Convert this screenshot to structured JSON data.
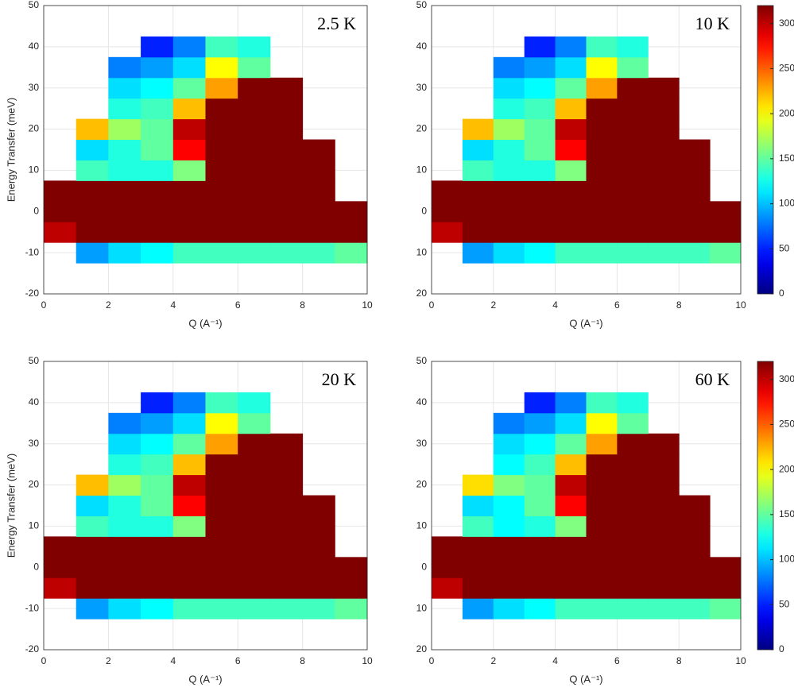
{
  "chart_data": [
    {
      "type": "heatmap",
      "annotation": "2.5 K",
      "xlabel": "Q (A⁻¹)",
      "ylabel": "Energy Transfer (meV)",
      "colormap": "jet",
      "clim": [
        0,
        320
      ],
      "grid": true,
      "xlim": [
        0,
        10
      ],
      "ylim": [
        -20,
        50
      ],
      "xticks": [
        0,
        2,
        4,
        6,
        8,
        10
      ],
      "yticks": [
        -20,
        -10,
        0,
        10,
        20,
        30,
        40,
        50
      ],
      "x": [
        0.5,
        1.5,
        2.5,
        3.5,
        4.5,
        5.5,
        6.5,
        7.5,
        8.5,
        9.5
      ],
      "y": [
        -10,
        -5,
        0,
        5,
        10,
        15,
        20,
        25,
        30,
        35,
        40
      ],
      "z": [
        [
          null,
          90,
          110,
          120,
          140,
          140,
          140,
          140,
          140,
          150
        ],
        [
          300,
          320,
          320,
          320,
          320,
          320,
          320,
          320,
          320,
          320
        ],
        [
          320,
          320,
          320,
          320,
          320,
          320,
          320,
          320,
          320,
          320
        ],
        [
          320,
          320,
          320,
          320,
          320,
          320,
          320,
          320,
          320,
          null
        ],
        [
          null,
          140,
          130,
          130,
          160,
          320,
          320,
          320,
          320,
          null
        ],
        [
          null,
          110,
          130,
          150,
          280,
          320,
          320,
          320,
          320,
          null
        ],
        [
          null,
          220,
          170,
          150,
          300,
          320,
          320,
          320,
          null,
          null
        ],
        [
          null,
          null,
          130,
          140,
          220,
          320,
          320,
          320,
          null,
          null
        ],
        [
          null,
          null,
          110,
          120,
          150,
          230,
          320,
          320,
          null,
          null
        ],
        [
          null,
          null,
          80,
          90,
          110,
          200,
          150,
          null,
          null,
          null
        ],
        [
          null,
          null,
          null,
          50,
          80,
          140,
          130,
          null,
          null,
          null
        ]
      ]
    },
    {
      "type": "heatmap",
      "annotation": "10 K",
      "xlabel": "Q (A⁻¹)",
      "colormap": "jet",
      "clim": [
        0,
        320
      ],
      "grid": true,
      "xlim": [
        0,
        10
      ],
      "ylim": [
        -20,
        50
      ],
      "xticks": [
        0,
        2,
        4,
        6,
        8,
        10
      ],
      "yticks": [
        {
          "value": -20,
          "label": "20"
        },
        {
          "value": -10,
          "label": "10"
        },
        0,
        10,
        20,
        30,
        40,
        50
      ],
      "colorbar_ticks": [
        0,
        50,
        100,
        150,
        200,
        250,
        300
      ],
      "x": [
        0.5,
        1.5,
        2.5,
        3.5,
        4.5,
        5.5,
        6.5,
        7.5,
        8.5,
        9.5
      ],
      "y": [
        -10,
        -5,
        0,
        5,
        10,
        15,
        20,
        25,
        30,
        35,
        40
      ],
      "z": [
        [
          null,
          90,
          110,
          120,
          140,
          140,
          140,
          140,
          140,
          150
        ],
        [
          300,
          320,
          320,
          320,
          320,
          320,
          320,
          320,
          320,
          320
        ],
        [
          320,
          320,
          320,
          320,
          320,
          320,
          320,
          320,
          320,
          320
        ],
        [
          320,
          320,
          320,
          320,
          320,
          320,
          320,
          320,
          320,
          null
        ],
        [
          null,
          140,
          130,
          130,
          160,
          320,
          320,
          320,
          320,
          null
        ],
        [
          null,
          110,
          130,
          150,
          280,
          320,
          320,
          320,
          320,
          null
        ],
        [
          null,
          220,
          170,
          150,
          300,
          320,
          320,
          320,
          null,
          null
        ],
        [
          null,
          null,
          130,
          140,
          220,
          320,
          320,
          320,
          null,
          null
        ],
        [
          null,
          null,
          110,
          120,
          150,
          230,
          320,
          320,
          null,
          null
        ],
        [
          null,
          null,
          80,
          90,
          110,
          200,
          150,
          null,
          null,
          null
        ],
        [
          null,
          null,
          null,
          50,
          80,
          140,
          130,
          null,
          null,
          null
        ]
      ]
    },
    {
      "type": "heatmap",
      "annotation": "20 K",
      "xlabel": "Q (A⁻¹)",
      "ylabel": "Energy Transfer (meV)",
      "colormap": "jet",
      "clim": [
        0,
        320
      ],
      "grid": true,
      "xlim": [
        0,
        10
      ],
      "ylim": [
        -20,
        50
      ],
      "xticks": [
        0,
        2,
        4,
        6,
        8,
        10
      ],
      "yticks": [
        -20,
        -10,
        0,
        10,
        20,
        30,
        40,
        50
      ],
      "x": [
        0.5,
        1.5,
        2.5,
        3.5,
        4.5,
        5.5,
        6.5,
        7.5,
        8.5,
        9.5
      ],
      "y": [
        -10,
        -5,
        0,
        5,
        10,
        15,
        20,
        25,
        30,
        35,
        40
      ],
      "z": [
        [
          null,
          90,
          110,
          120,
          140,
          140,
          140,
          140,
          140,
          150
        ],
        [
          300,
          320,
          320,
          320,
          320,
          320,
          320,
          320,
          320,
          320
        ],
        [
          320,
          320,
          320,
          320,
          320,
          320,
          320,
          320,
          320,
          320
        ],
        [
          320,
          320,
          320,
          320,
          320,
          320,
          320,
          320,
          320,
          null
        ],
        [
          null,
          140,
          130,
          130,
          160,
          320,
          320,
          320,
          320,
          null
        ],
        [
          null,
          110,
          130,
          150,
          280,
          320,
          320,
          320,
          320,
          null
        ],
        [
          null,
          220,
          170,
          150,
          300,
          320,
          320,
          320,
          null,
          null
        ],
        [
          null,
          null,
          130,
          140,
          220,
          320,
          320,
          320,
          null,
          null
        ],
        [
          null,
          null,
          110,
          120,
          150,
          230,
          320,
          320,
          null,
          null
        ],
        [
          null,
          null,
          80,
          90,
          110,
          200,
          150,
          null,
          null,
          null
        ],
        [
          null,
          null,
          null,
          50,
          80,
          140,
          130,
          null,
          null,
          null
        ]
      ]
    },
    {
      "type": "heatmap",
      "annotation": "60 K",
      "xlabel": "Q (A⁻¹)",
      "colormap": "jet",
      "clim": [
        0,
        320
      ],
      "grid": true,
      "xlim": [
        0,
        10
      ],
      "ylim": [
        -20,
        50
      ],
      "xticks": [
        0,
        2,
        4,
        6,
        8,
        10
      ],
      "yticks": [
        {
          "value": -20,
          "label": "20"
        },
        {
          "value": -10,
          "label": "10"
        },
        0,
        10,
        20,
        30,
        40,
        50
      ],
      "colorbar_ticks": [
        0,
        50,
        100,
        150,
        200,
        250,
        300
      ],
      "x": [
        0.5,
        1.5,
        2.5,
        3.5,
        4.5,
        5.5,
        6.5,
        7.5,
        8.5,
        9.5
      ],
      "y": [
        -10,
        -5,
        0,
        5,
        10,
        15,
        20,
        25,
        30,
        35,
        40
      ],
      "z": [
        [
          null,
          90,
          110,
          120,
          140,
          140,
          140,
          140,
          140,
          150
        ],
        [
          300,
          320,
          320,
          320,
          320,
          320,
          320,
          320,
          320,
          320
        ],
        [
          320,
          320,
          320,
          320,
          320,
          320,
          320,
          320,
          320,
          320
        ],
        [
          320,
          320,
          320,
          320,
          320,
          320,
          320,
          320,
          320,
          null
        ],
        [
          null,
          140,
          120,
          130,
          160,
          320,
          320,
          320,
          320,
          null
        ],
        [
          null,
          110,
          120,
          150,
          280,
          320,
          320,
          320,
          320,
          null
        ],
        [
          null,
          210,
          160,
          150,
          300,
          320,
          320,
          320,
          null,
          null
        ],
        [
          null,
          null,
          120,
          140,
          220,
          320,
          320,
          320,
          null,
          null
        ],
        [
          null,
          null,
          110,
          120,
          150,
          230,
          320,
          320,
          null,
          null
        ],
        [
          null,
          null,
          80,
          90,
          110,
          200,
          150,
          null,
          null,
          null
        ],
        [
          null,
          null,
          null,
          50,
          80,
          140,
          130,
          null,
          null,
          null
        ]
      ]
    }
  ]
}
